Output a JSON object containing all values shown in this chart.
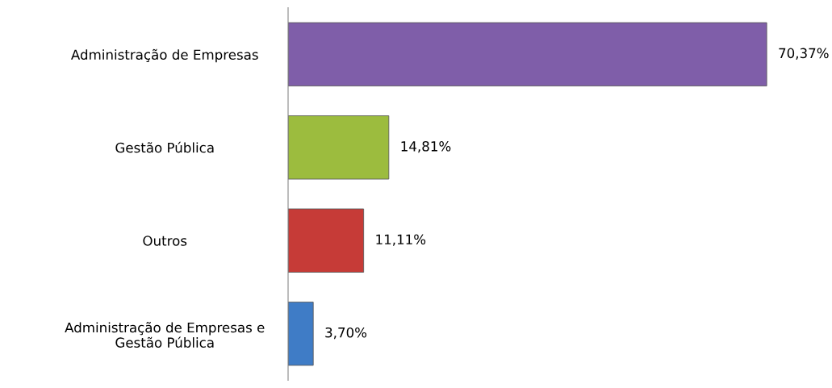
{
  "chart_data": {
    "type": "bar",
    "orientation": "horizontal",
    "categories": [
      "Administração de Empresas",
      "Gestão Pública",
      "Outros",
      "Administração de Empresas e\nGestão Pública"
    ],
    "values": [
      70.37,
      14.81,
      11.11,
      3.7
    ],
    "colors": [
      "#7f5ea9",
      "#9cbc3e",
      "#c63b37",
      "#3f7cc6"
    ],
    "value_labels": [
      "70,37%",
      "14,81%",
      "11,11%",
      "3,70%"
    ],
    "grid": false,
    "legend": false
  }
}
